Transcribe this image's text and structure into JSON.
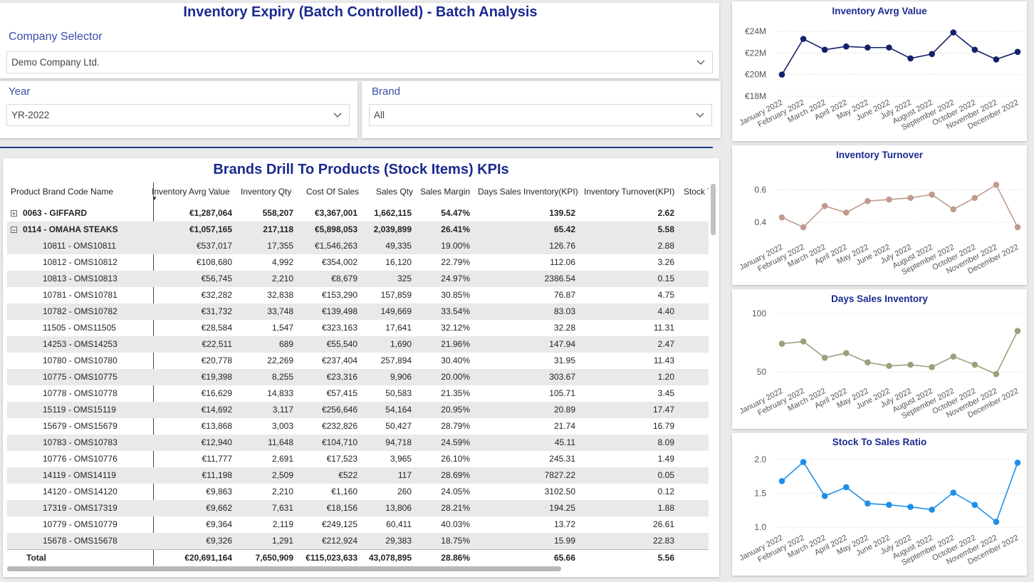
{
  "report": {
    "title": "Inventory Expiry (Batch Controlled) - Batch Analysis"
  },
  "slicers": {
    "company": {
      "label": "Company Selector",
      "value": "Demo Company Ltd."
    },
    "year": {
      "label": "Year",
      "value": "YR-2022"
    },
    "brand": {
      "label": "Brand",
      "value": "All"
    }
  },
  "table": {
    "title": "Brands Drill To Products (Stock Items) KPIs",
    "columns": [
      "Product Brand Code Name",
      "Inventory Avrg Value",
      "Inventory Qty",
      "Cost Of Sales",
      "Sales Qty",
      "Sales Margin",
      "Days Sales Inventory(KPI)",
      "Inventory Turnover(KPI)",
      "Stock T"
    ],
    "rows": [
      {
        "type": "brand",
        "expander": "⊞",
        "name": "0063 - GIFFARD",
        "inv_val": "€1,287,064",
        "inv_qty": "558,207",
        "cos": "€3,367,001",
        "sales_qty": "1,662,115",
        "margin": "54.47%",
        "dsi": "139.52",
        "turnover": "2.62"
      },
      {
        "type": "brand",
        "expander": "⊟",
        "name": "0114 - OMAHA STEAKS",
        "inv_val": "€1,057,165",
        "inv_qty": "217,118",
        "cos": "€5,898,053",
        "sales_qty": "2,039,899",
        "margin": "26.41%",
        "dsi": "65.42",
        "turnover": "5.58"
      },
      {
        "type": "item",
        "name": "10811 - OMS10811",
        "inv_val": "€537,017",
        "inv_qty": "17,355",
        "cos": "€1,546,263",
        "sales_qty": "49,335",
        "margin": "19.00%",
        "dsi": "126.76",
        "turnover": "2.88"
      },
      {
        "type": "item",
        "name": "10812 - OMS10812",
        "inv_val": "€108,680",
        "inv_qty": "4,992",
        "cos": "€354,002",
        "sales_qty": "16,120",
        "margin": "22.79%",
        "dsi": "112.06",
        "turnover": "3.26"
      },
      {
        "type": "item",
        "name": "10813 - OMS10813",
        "inv_val": "€56,745",
        "inv_qty": "2,210",
        "cos": "€8,679",
        "sales_qty": "325",
        "margin": "24.97%",
        "dsi": "2386.54",
        "turnover": "0.15"
      },
      {
        "type": "item",
        "name": "10781 - OMS10781",
        "inv_val": "€32,282",
        "inv_qty": "32,838",
        "cos": "€153,290",
        "sales_qty": "157,859",
        "margin": "30.85%",
        "dsi": "76.87",
        "turnover": "4.75"
      },
      {
        "type": "item",
        "name": "10782 - OMS10782",
        "inv_val": "€31,732",
        "inv_qty": "33,748",
        "cos": "€139,498",
        "sales_qty": "149,669",
        "margin": "33.54%",
        "dsi": "83.03",
        "turnover": "4.40"
      },
      {
        "type": "item",
        "name": "11505 - OMS11505",
        "inv_val": "€28,584",
        "inv_qty": "1,547",
        "cos": "€323,163",
        "sales_qty": "17,641",
        "margin": "32.12%",
        "dsi": "32.28",
        "turnover": "11.31"
      },
      {
        "type": "item",
        "name": "14253 - OMS14253",
        "inv_val": "€22,511",
        "inv_qty": "689",
        "cos": "€55,540",
        "sales_qty": "1,690",
        "margin": "21.96%",
        "dsi": "147.94",
        "turnover": "2.47"
      },
      {
        "type": "item",
        "name": "10780 - OMS10780",
        "inv_val": "€20,778",
        "inv_qty": "22,269",
        "cos": "€237,404",
        "sales_qty": "257,894",
        "margin": "30.40%",
        "dsi": "31.95",
        "turnover": "11.43"
      },
      {
        "type": "item",
        "name": "10775 - OMS10775",
        "inv_val": "€19,398",
        "inv_qty": "8,255",
        "cos": "€23,316",
        "sales_qty": "9,906",
        "margin": "20.00%",
        "dsi": "303.67",
        "turnover": "1.20"
      },
      {
        "type": "item",
        "name": "10778 - OMS10778",
        "inv_val": "€16,629",
        "inv_qty": "14,833",
        "cos": "€57,415",
        "sales_qty": "50,583",
        "margin": "21.35%",
        "dsi": "105.71",
        "turnover": "3.45"
      },
      {
        "type": "item",
        "name": "15119 - OMS15119",
        "inv_val": "€14,692",
        "inv_qty": "3,117",
        "cos": "€256,646",
        "sales_qty": "54,164",
        "margin": "20.95%",
        "dsi": "20.89",
        "turnover": "17.47"
      },
      {
        "type": "item",
        "name": "15679 - OMS15679",
        "inv_val": "€13,868",
        "inv_qty": "3,003",
        "cos": "€232,826",
        "sales_qty": "50,427",
        "margin": "28.79%",
        "dsi": "21.74",
        "turnover": "16.79"
      },
      {
        "type": "item",
        "name": "10783 - OMS10783",
        "inv_val": "€12,940",
        "inv_qty": "11,648",
        "cos": "€104,710",
        "sales_qty": "94,718",
        "margin": "24.59%",
        "dsi": "45.11",
        "turnover": "8.09"
      },
      {
        "type": "item",
        "name": "10776 - OMS10776",
        "inv_val": "€11,777",
        "inv_qty": "2,691",
        "cos": "€17,523",
        "sales_qty": "3,965",
        "margin": "26.10%",
        "dsi": "245.31",
        "turnover": "1.49"
      },
      {
        "type": "item",
        "name": "14119 - OMS14119",
        "inv_val": "€11,198",
        "inv_qty": "2,509",
        "cos": "€522",
        "sales_qty": "117",
        "margin": "28.69%",
        "dsi": "7827.22",
        "turnover": "0.05"
      },
      {
        "type": "item",
        "name": "14120 - OMS14120",
        "inv_val": "€9,863",
        "inv_qty": "2,210",
        "cos": "€1,160",
        "sales_qty": "260",
        "margin": "24.05%",
        "dsi": "3102.50",
        "turnover": "0.12"
      },
      {
        "type": "item",
        "name": "17319 - OMS17319",
        "inv_val": "€9,662",
        "inv_qty": "7,631",
        "cos": "€18,156",
        "sales_qty": "13,806",
        "margin": "28.21%",
        "dsi": "194.25",
        "turnover": "1.88"
      },
      {
        "type": "item",
        "name": "10779 - OMS10779",
        "inv_val": "€9,364",
        "inv_qty": "2,119",
        "cos": "€249,125",
        "sales_qty": "60,411",
        "margin": "40.03%",
        "dsi": "13.72",
        "turnover": "26.61"
      },
      {
        "type": "item",
        "name": "15678 - OMS15678",
        "inv_val": "€9,326",
        "inv_qty": "1,291",
        "cos": "€212,924",
        "sales_qty": "29,383",
        "margin": "18.75%",
        "dsi": "15.99",
        "turnover": "22.83"
      }
    ],
    "total": {
      "name": "Total",
      "inv_val": "€20,691,164",
      "inv_qty": "7,650,909",
      "cos": "€115,023,633",
      "sales_qty": "43,078,895",
      "margin": "28.86%",
      "dsi": "65.66",
      "turnover": "5.56"
    }
  },
  "chart_data": [
    {
      "type": "line",
      "title": "Inventory Avrg Value",
      "x": [
        "January 2022",
        "February 2022",
        "March 2022",
        "April 2022",
        "May 2022",
        "June 2022",
        "July 2022",
        "August 2022",
        "September 2022",
        "October 2022",
        "November 2022",
        "December 2022"
      ],
      "series": [
        {
          "values": [
            20.0,
            23.3,
            22.3,
            22.6,
            22.5,
            22.5,
            21.5,
            21.9,
            23.9,
            22.3,
            21.4,
            22.1
          ]
        }
      ],
      "ylim": [
        18,
        24
      ],
      "yticks": [
        18,
        20,
        22,
        24
      ],
      "ytick_labels": [
        "€18M",
        "€20M",
        "€22M",
        "€24M"
      ],
      "color": "#14206b",
      "grid": true
    },
    {
      "type": "line",
      "title": "Inventory Turnover",
      "x": [
        "January 2022",
        "February 2022",
        "March 2022",
        "April 2022",
        "May 2022",
        "June 2022",
        "July 2022",
        "August 2022",
        "September 2022",
        "October 2022",
        "November 2022",
        "December 2022"
      ],
      "series": [
        {
          "values": [
            0.43,
            0.37,
            0.5,
            0.46,
            0.53,
            0.54,
            0.55,
            0.57,
            0.48,
            0.55,
            0.63,
            0.37
          ]
        }
      ],
      "ylim": [
        0.3,
        0.68
      ],
      "yticks": [
        0.4,
        0.6
      ],
      "ytick_labels": [
        "0.4",
        "0.6"
      ],
      "color": "#c09b8d",
      "grid": true
    },
    {
      "type": "line",
      "title": "Days Sales Inventory",
      "x": [
        "January 2022",
        "February 2022",
        "March 2022",
        "April 2022",
        "May 2022",
        "June 2022",
        "July 2022",
        "August 2022",
        "September 2022",
        "October 2022",
        "November 2022",
        "December 2022"
      ],
      "series": [
        {
          "values": [
            74,
            76,
            62,
            66,
            58,
            55,
            56,
            54,
            63,
            56,
            48,
            85
          ]
        }
      ],
      "ylim": [
        45,
        100
      ],
      "yticks": [
        50,
        100
      ],
      "ytick_labels": [
        "50",
        "100"
      ],
      "color": "#98a27a",
      "grid": true
    },
    {
      "type": "line",
      "title": "Stock To Sales Ratio",
      "x": [
        "January 2022",
        "February 2022",
        "March 2022",
        "April 2022",
        "May 2022",
        "June 2022",
        "July 2022",
        "August 2022",
        "September 2022",
        "October 2022",
        "November 2022",
        "December 2022"
      ],
      "series": [
        {
          "values": [
            1.68,
            1.96,
            1.46,
            1.59,
            1.35,
            1.33,
            1.3,
            1.26,
            1.51,
            1.33,
            1.08,
            1.95
          ]
        }
      ],
      "ylim": [
        0.95,
        2.05
      ],
      "yticks": [
        1.0,
        1.5,
        2.0
      ],
      "ytick_labels": [
        "1.0",
        "1.5",
        "2.0"
      ],
      "color": "#1e8fe8",
      "grid": true
    }
  ]
}
